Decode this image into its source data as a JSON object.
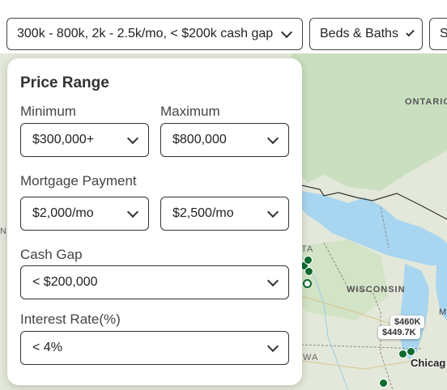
{
  "filters": {
    "price_summary": "300k - 800k, 2k - 2.5k/mo, < $200k cash gap",
    "beds_baths": "Beds & Baths",
    "next_partial": "S"
  },
  "panel": {
    "title": "Price Range",
    "minimum_label": "Minimum",
    "maximum_label": "Maximum",
    "minimum_value": "$300,000+",
    "maximum_value": "$800,000",
    "mortgage_label": "Mortgage Payment",
    "mortgage_min": "$2,000/mo",
    "mortgage_max": "$2,500/mo",
    "cash_gap_label": "Cash Gap",
    "cash_gap_value": "< $200,000",
    "interest_label": "Interest Rate(%)",
    "interest_value": "< 4%"
  },
  "map": {
    "labels": {
      "ontario": "ONTARIO",
      "wisconsin": "WISCONSIN",
      "wa": "WA",
      "ta": "TA",
      "m": "M",
      "n": "N"
    },
    "pins": [
      "$460K",
      "$449.7K"
    ],
    "city": "Chicag"
  },
  "colors": {
    "water": "#a8d5ef",
    "land": "#dfe6d4",
    "forest": "#c8dcb8",
    "marker": "#0e6b2e"
  }
}
